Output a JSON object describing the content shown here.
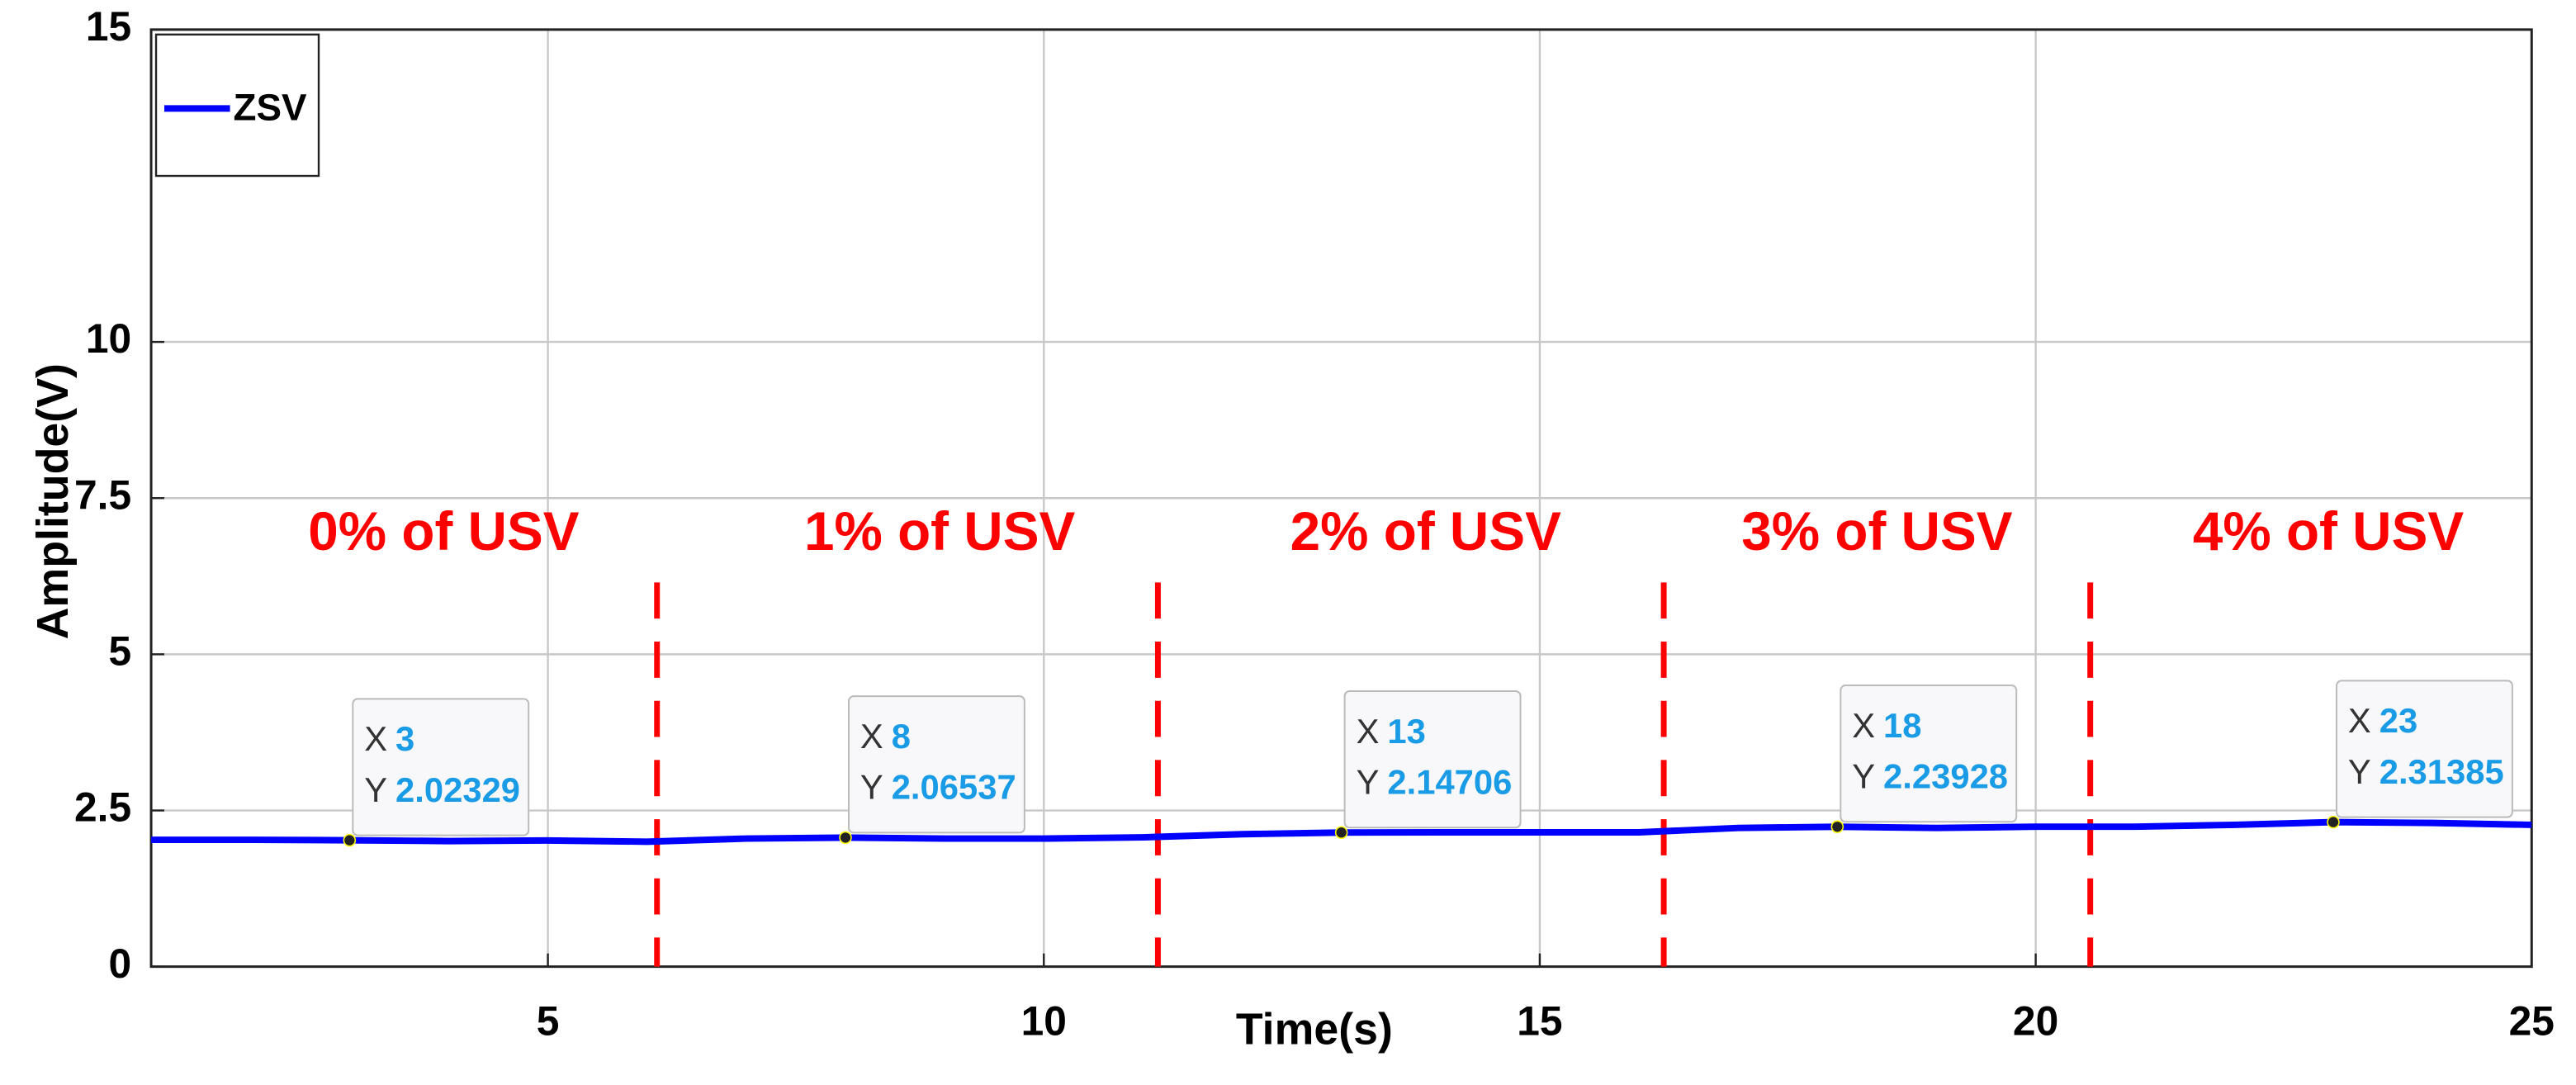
{
  "chart_data": {
    "type": "line",
    "x_label": "Time(s)",
    "y_label": "Amplitude(V)",
    "xlim": [
      1,
      25
    ],
    "xticks": [
      5,
      10,
      15,
      20,
      25
    ],
    "ylim": [
      0,
      15
    ],
    "yticks": [
      0,
      2.5,
      5,
      7.5,
      10,
      15
    ],
    "grid": true,
    "legend": "upper left",
    "x": [
      1,
      2,
      3,
      4,
      5,
      6,
      7,
      8,
      9,
      10,
      11,
      12,
      13,
      14,
      15,
      16,
      17,
      18,
      19,
      20,
      21,
      22,
      23,
      24,
      25
    ],
    "series": [
      {
        "name": "ZSV",
        "color": "#0000ff",
        "values": [
          2.03,
          2.03,
          2.02329,
          2.01,
          2.02,
          2.0,
          2.05,
          2.06537,
          2.05,
          2.05,
          2.07,
          2.12,
          2.14706,
          2.15,
          2.15,
          2.15,
          2.22,
          2.23928,
          2.22,
          2.24,
          2.24,
          2.27,
          2.31385,
          2.3,
          2.27
        ]
      }
    ],
    "datatip_x_label": "X",
    "datatip_y_label": "Y",
    "datatips": [
      {
        "x": 3,
        "y": 2.02329
      },
      {
        "x": 8,
        "y": 2.06537
      },
      {
        "x": 13,
        "y": 2.14706
      },
      {
        "x": 18,
        "y": 2.23928
      },
      {
        "x": 23,
        "y": 2.31385
      }
    ],
    "dividers": [
      6.1,
      11.15,
      16.25,
      20.55
    ],
    "annotations": [
      {
        "text": "0% of USV",
        "x": 3.95
      },
      {
        "text": "1% of USV",
        "x": 8.95
      },
      {
        "text": "2% of USV",
        "x": 13.85
      },
      {
        "text": "3% of USV",
        "x": 18.4
      },
      {
        "text": "4% of USV",
        "x": 22.95
      }
    ],
    "annotation_y": 6.9,
    "divider_top": 6.15
  }
}
